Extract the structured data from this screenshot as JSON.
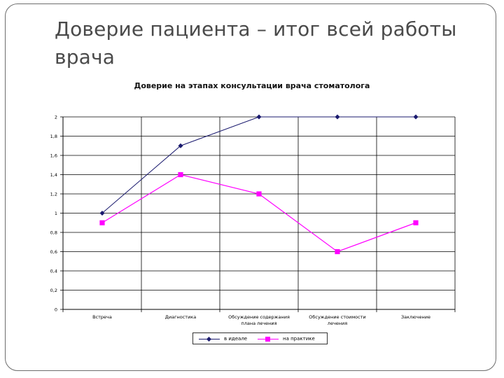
{
  "slide": {
    "title_line1": "Доверие пациента – итог всей работы",
    "title_line2": "врача"
  },
  "chart_data": {
    "type": "line",
    "title": "Доверие на этапах консультации врача стоматолога",
    "categories": [
      [
        "Встреча"
      ],
      [
        "Диагностика"
      ],
      [
        "Обсуждение содержания",
        "плана лечения"
      ],
      [
        "Обсуждение стоимости",
        "лечения"
      ],
      [
        "Заключение"
      ]
    ],
    "ylim": [
      0,
      2
    ],
    "yticks": [
      {
        "value": 0,
        "label": "0"
      },
      {
        "value": 0.2,
        "label": "0,2"
      },
      {
        "value": 0.4,
        "label": "0,4"
      },
      {
        "value": 0.6,
        "label": "0,6"
      },
      {
        "value": 0.8,
        "label": "0,8"
      },
      {
        "value": 1,
        "label": "1"
      },
      {
        "value": 1.2,
        "label": "1,2"
      },
      {
        "value": 1.4,
        "label": "1,4"
      },
      {
        "value": 1.6,
        "label": "1,6"
      },
      {
        "value": 1.8,
        "label": "1,8"
      },
      {
        "value": 2,
        "label": "2"
      }
    ],
    "grid": true,
    "legend_position": "bottom",
    "series": [
      {
        "name": "в идеале",
        "values": [
          1.0,
          1.7,
          2.0,
          2.0,
          2.0
        ],
        "color": "#1a1a6e",
        "marker": "diamond"
      },
      {
        "name": "на практике",
        "values": [
          0.9,
          1.4,
          1.2,
          0.6,
          0.9
        ],
        "color": "#ff00ff",
        "marker": "square"
      }
    ]
  }
}
